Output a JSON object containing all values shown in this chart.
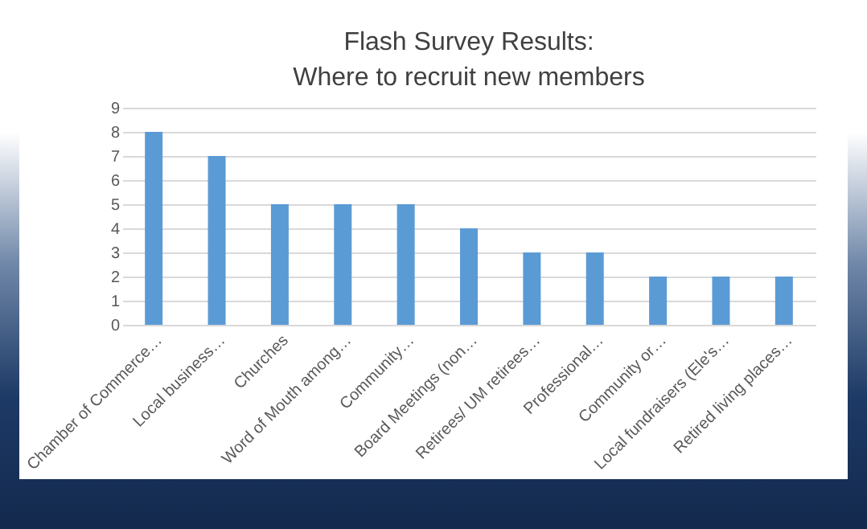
{
  "chart_data": {
    "type": "bar",
    "title": [
      "Flash Survey Results:",
      "Where to recruit new members"
    ],
    "categories": [
      "Chamber of Commerce…",
      "Local business…",
      "Churches",
      "Word of Mouth among…",
      "Community…",
      "Board Meetings (non…",
      "Retirees/ UM retirees…",
      "Professional…",
      "Community or…",
      "Local fundraisers (Ele's…",
      "Retired living places…"
    ],
    "values": [
      8,
      7,
      5,
      5,
      5,
      4,
      3,
      3,
      2,
      2,
      2
    ],
    "color": "#5b9bd5",
    "ylim": [
      0,
      9
    ],
    "yticks": [
      0,
      1,
      2,
      3,
      4,
      5,
      6,
      7,
      8,
      9
    ],
    "grid": "y"
  }
}
